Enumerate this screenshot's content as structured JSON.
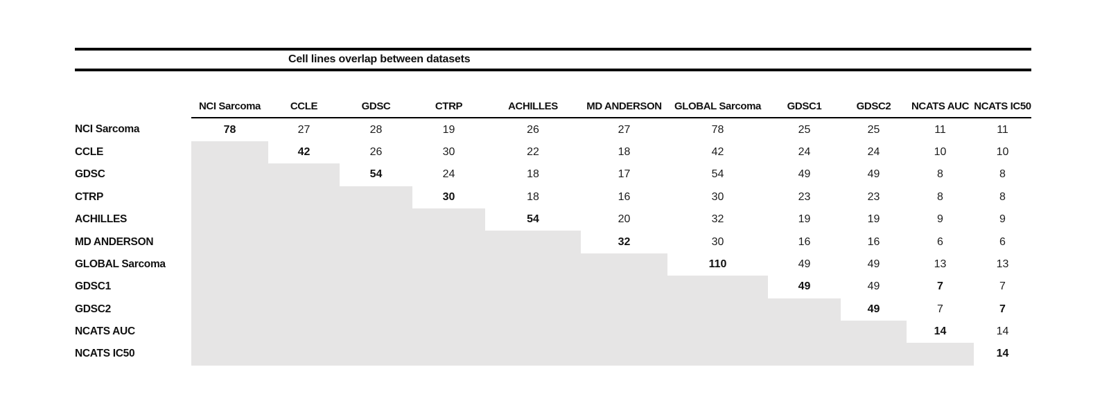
{
  "figure": {
    "title": "Cell lines overlap between datasets",
    "datasets": [
      "NCI Sarcoma",
      "CCLE",
      "GDSC",
      "CTRP",
      "ACHILLES",
      "MD ANDERSON",
      "GLOBAL Sarcoma",
      "GDSC1",
      "GDSC2",
      "NCATS AUC",
      "NCATS IC50"
    ],
    "matrix": [
      [
        78,
        27,
        28,
        19,
        26,
        27,
        78,
        25,
        25,
        11,
        11
      ],
      [
        null,
        42,
        26,
        30,
        22,
        18,
        42,
        24,
        24,
        10,
        10
      ],
      [
        null,
        null,
        54,
        24,
        18,
        17,
        54,
        49,
        49,
        8,
        8
      ],
      [
        null,
        null,
        null,
        30,
        18,
        16,
        30,
        23,
        23,
        8,
        8
      ],
      [
        null,
        null,
        null,
        null,
        54,
        20,
        32,
        19,
        19,
        9,
        9
      ],
      [
        null,
        null,
        null,
        null,
        null,
        32,
        30,
        16,
        16,
        6,
        6
      ],
      [
        null,
        null,
        null,
        null,
        null,
        null,
        110,
        49,
        49,
        13,
        13
      ],
      [
        null,
        null,
        null,
        null,
        null,
        null,
        null,
        49,
        49,
        7,
        7
      ],
      [
        null,
        null,
        null,
        null,
        null,
        null,
        null,
        null,
        49,
        7,
        7
      ],
      [
        null,
        null,
        null,
        null,
        null,
        null,
        null,
        null,
        null,
        14,
        14
      ],
      [
        null,
        null,
        null,
        null,
        null,
        null,
        null,
        null,
        null,
        null,
        14
      ]
    ],
    "bold_cells": [
      [
        0,
        0
      ],
      [
        1,
        1
      ],
      [
        2,
        2
      ],
      [
        3,
        3
      ],
      [
        4,
        4
      ],
      [
        5,
        5
      ],
      [
        6,
        6
      ],
      [
        7,
        7
      ],
      [
        7,
        9
      ],
      [
        8,
        8
      ],
      [
        8,
        10
      ],
      [
        9,
        9
      ],
      [
        10,
        10
      ]
    ],
    "shaded_lower_triangle": true,
    "colors": {
      "shade": "#e6e5e5",
      "rule": "#000000",
      "text": "#1a1a1a"
    }
  }
}
